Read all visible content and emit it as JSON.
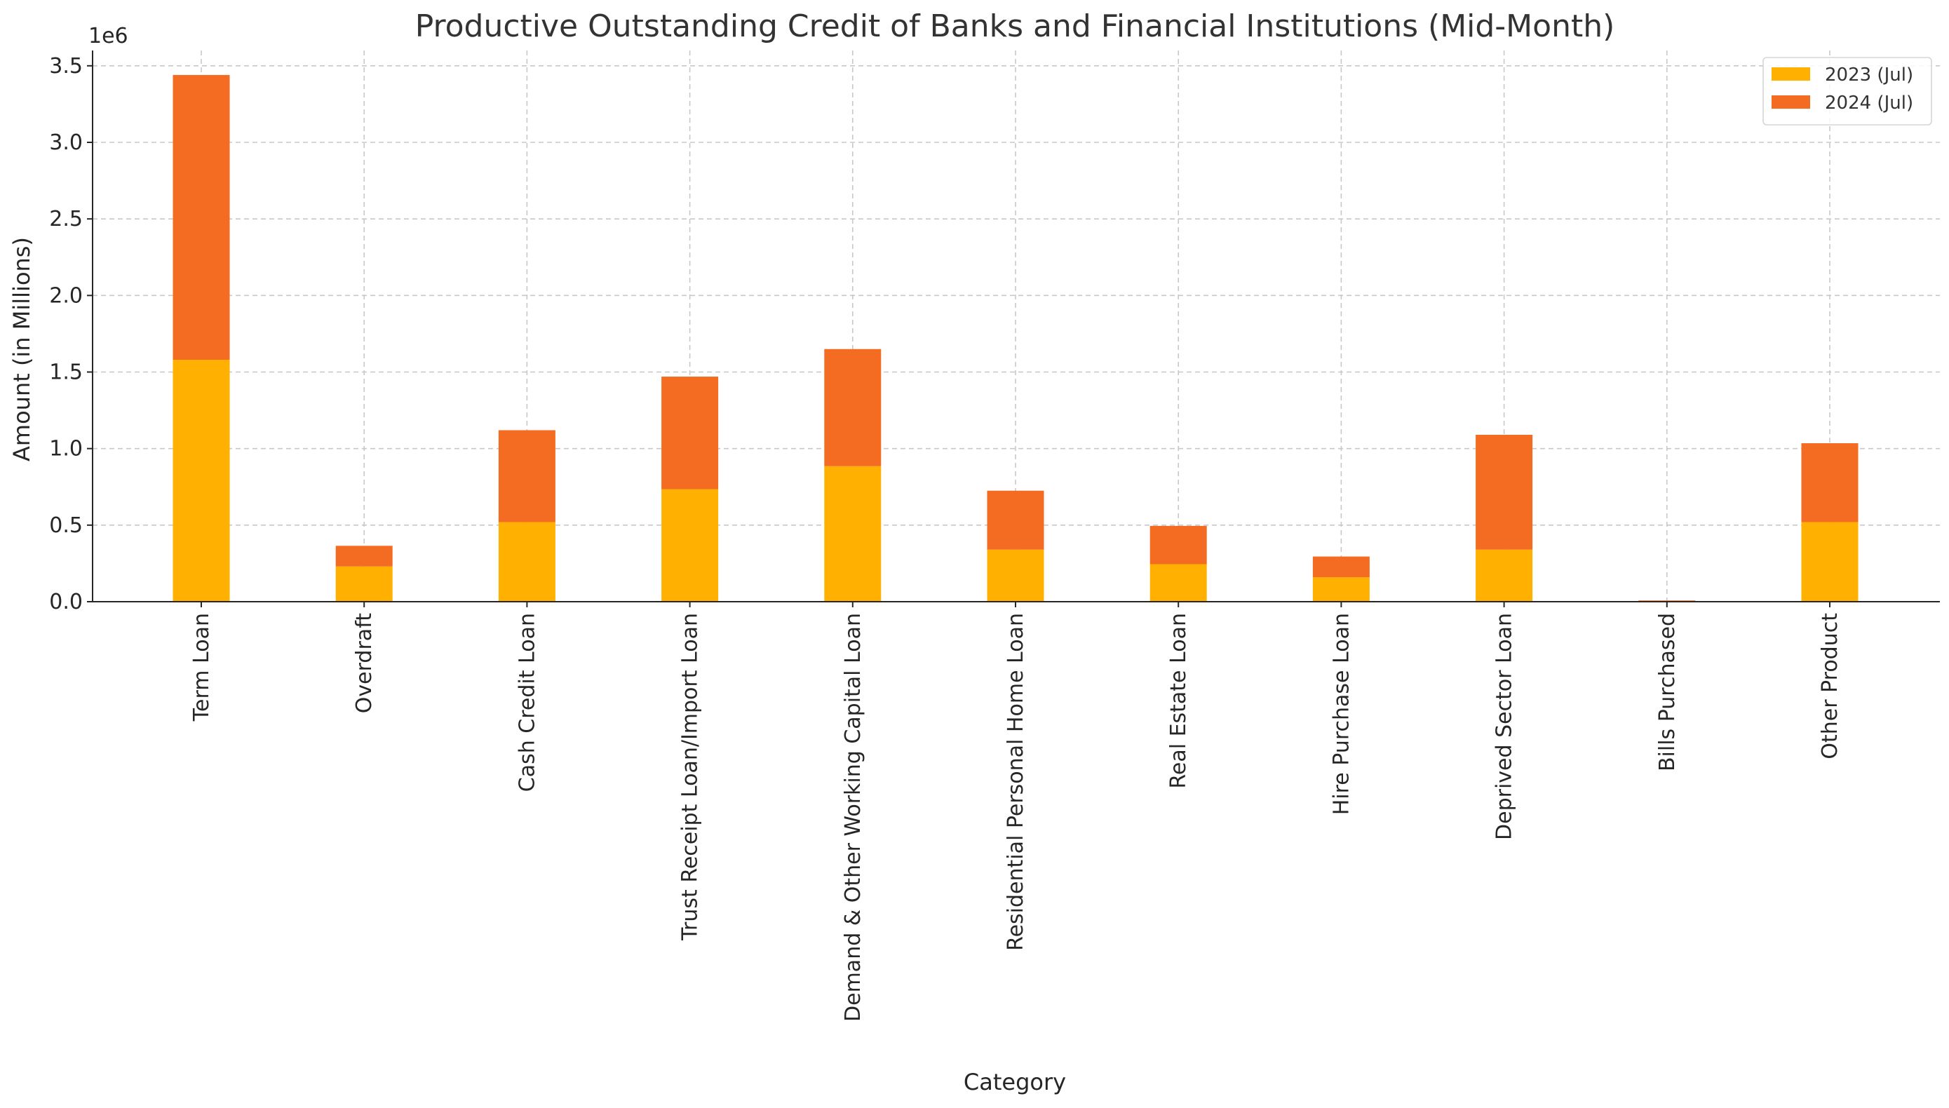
{
  "chart_data": {
    "type": "bar",
    "stacked": true,
    "title": "Productive Outstanding Credit of Banks and Financial Institutions (Mid-Month)",
    "xlabel": "Category",
    "ylabel": "Amount (in Millions)",
    "y_offset_label": "1e6",
    "ylim": [
      0,
      3600000
    ],
    "yticks": [
      0,
      500000,
      1000000,
      1500000,
      2000000,
      2500000,
      3000000,
      3500000
    ],
    "ytick_labels": [
      "0.0",
      "0.5",
      "1.0",
      "1.5",
      "2.0",
      "2.5",
      "3.0",
      "3.5"
    ],
    "grid": true,
    "legend_position": "top-right",
    "categories": [
      "Term Loan",
      "Overdraft",
      "Cash Credit Loan",
      "Trust Receipt Loan/Import Loan",
      "Demand & Other Working Capital Loan",
      "Residential Personal Home Loan",
      "Real Estate Loan",
      "Hire Purchase Loan",
      "Deprived Sector Loan",
      "Bills Purchased",
      "Other Product"
    ],
    "series": [
      {
        "name": "2023 (Jul)",
        "color": "#FFB000",
        "values": [
          1580000,
          230000,
          520000,
          735000,
          885000,
          340000,
          245000,
          160000,
          340000,
          3000,
          520000
        ]
      },
      {
        "name": "2024 (Jul)",
        "color": "#F46B22",
        "values": [
          1860000,
          135000,
          600000,
          735000,
          765000,
          385000,
          250000,
          135000,
          750000,
          5000,
          515000
        ]
      }
    ]
  }
}
